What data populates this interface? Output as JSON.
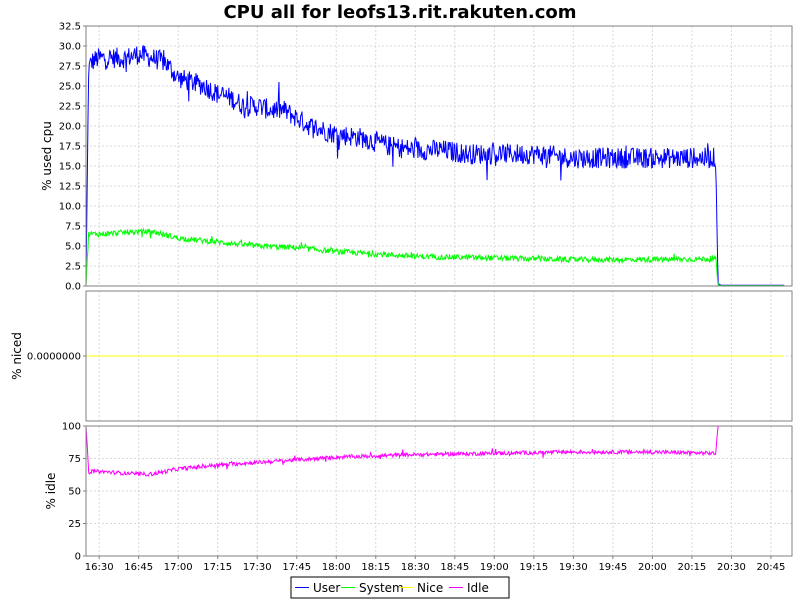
{
  "title": "CPU all for leofs13.rit.rakuten.com",
  "legend": [
    {
      "label": "User",
      "color": "#0000ff"
    },
    {
      "label": "System",
      "color": "#00ff00"
    },
    {
      "label": "Nice",
      "color": "#ffff00"
    },
    {
      "label": "Idle",
      "color": "#ff00ff"
    }
  ],
  "chart_data": {
    "type": "line",
    "title": "CPU all for leofs13.rit.rakuten.com",
    "x_tick_labels": [
      "16:30",
      "16:45",
      "17:00",
      "17:15",
      "17:30",
      "17:45",
      "18:00",
      "18:15",
      "18:30",
      "18:45",
      "19:00",
      "19:15",
      "19:30",
      "19:45",
      "20:00",
      "20:15",
      "20:30",
      "20:45"
    ],
    "x_minutes_range": [
      985,
      1253
    ],
    "grid": true,
    "legend_position": "bottom",
    "panels": [
      {
        "id": "used",
        "ylabel": "% used cpu",
        "ylim": [
          0,
          32.5
        ],
        "yticks": [
          "0.0",
          "2.5",
          "5.0",
          "7.5",
          "10.0",
          "12.5",
          "15.0",
          "17.5",
          "20.0",
          "22.5",
          "25.0",
          "27.5",
          "30.0",
          "32.5"
        ],
        "series": [
          {
            "name": "User",
            "color": "#0000ff",
            "x": [
              "16:25",
              "16:26",
              "16:27",
              "16:30",
              "16:35",
              "16:40",
              "16:45",
              "16:50",
              "16:55",
              "17:00",
              "17:05",
              "17:10",
              "17:15",
              "17:20",
              "17:25",
              "17:30",
              "17:35",
              "17:40",
              "17:45",
              "17:50",
              "17:55",
              "18:00",
              "18:10",
              "18:20",
              "18:30",
              "18:40",
              "18:50",
              "19:00",
              "19:15",
              "19:30",
              "19:45",
              "20:00",
              "20:10",
              "20:20",
              "20:24",
              "20:25",
              "20:26",
              "20:50"
            ],
            "y": [
              0,
              27,
              28,
              28.5,
              28.5,
              28.5,
              29,
              28.5,
              28,
              26,
              25.5,
              25,
              24,
              23.5,
              22.5,
              22.5,
              22,
              22,
              21,
              20,
              19.5,
              19,
              18.5,
              17.5,
              17,
              17,
              16.5,
              16.5,
              16.5,
              16,
              16,
              16,
              16,
              16,
              16,
              0.3,
              0.1,
              0.1
            ],
            "noise": 1.3
          },
          {
            "name": "System",
            "color": "#00ff00",
            "x": [
              "16:25",
              "16:26",
              "16:27",
              "16:30",
              "16:45",
              "16:50",
              "17:00",
              "17:15",
              "17:30",
              "17:45",
              "18:00",
              "18:15",
              "18:30",
              "19:00",
              "19:30",
              "20:00",
              "20:24",
              "20:25",
              "20:26",
              "20:50"
            ],
            "y": [
              0,
              6.5,
              6.5,
              6.5,
              6.8,
              6.8,
              6,
              5.5,
              5,
              4.8,
              4.3,
              4,
              3.7,
              3.5,
              3.3,
              3.3,
              3.4,
              0.1,
              0.05,
              0.05
            ],
            "noise": 0.35
          }
        ]
      },
      {
        "id": "niced",
        "ylabel": "% niced",
        "yticks": [
          "0.0000000"
        ],
        "series": [
          {
            "name": "Nice",
            "color": "#ffff00",
            "x": [
              "16:25",
              "20:50"
            ],
            "y": [
              0,
              0
            ],
            "noise": 0
          }
        ]
      },
      {
        "id": "idle",
        "ylabel": "% idle",
        "ylim": [
          0,
          100
        ],
        "yticks": [
          "0",
          "25",
          "50",
          "75",
          "100"
        ],
        "series": [
          {
            "name": "Idle",
            "color": "#ff00ff",
            "x": [
              "16:25",
              "16:26",
              "16:27",
              "16:30",
              "16:45",
              "16:50",
              "17:00",
              "17:15",
              "17:30",
              "17:45",
              "18:00",
              "18:15",
              "18:30",
              "19:00",
              "19:30",
              "20:00",
              "20:24",
              "20:25",
              "20:26",
              "20:50"
            ],
            "y": [
              100,
              65,
              65,
              65,
              63,
              63,
              67,
              70,
              72,
              74,
              76,
              77,
              78,
              79,
              80,
              80,
              79,
              100,
              100,
              100
            ],
            "noise": 1.5
          }
        ]
      }
    ]
  }
}
